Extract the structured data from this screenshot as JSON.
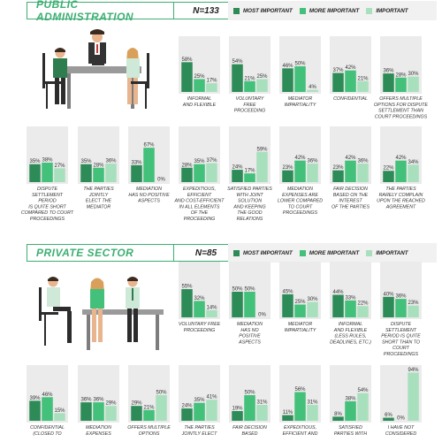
{
  "colors": {
    "most": "#2d8b57",
    "more": "#43c079",
    "important": "#a8e0bd",
    "panel": "#ebebeb",
    "accent": "#3daf73"
  },
  "legend": {
    "most": "MOST IMPORTANT",
    "more": "MORE IMPORTANT",
    "important": "IMPORTANT"
  },
  "sections": [
    {
      "title": "PUBLIC ADMINISTRATION",
      "n": "N=133"
    },
    {
      "title": "PRIVATE SECTOR",
      "n": "N=85"
    }
  ],
  "chart_data": [
    {
      "type": "bar",
      "title": "PUBLIC ADMINISTRATION",
      "series_names": [
        "MOST IMPORTANT",
        "MORE IMPORTANT",
        "IMPORTANT"
      ],
      "ylim": [
        0,
        100
      ],
      "groups": [
        {
          "label": [
            "INFORMAL",
            "AND FLEXIBLE"
          ],
          "values": [
            58,
            25,
            17
          ]
        },
        {
          "label": [
            "VOLUNTARY",
            "FREE",
            "PROCEEDING"
          ],
          "values": [
            54,
            21,
            25
          ]
        },
        {
          "label": [
            "MEDIATOR",
            "IMPARTIALITY"
          ],
          "values": [
            46,
            50,
            4
          ]
        },
        {
          "label": [
            "CONFIDENTIAL"
          ],
          "values": [
            37,
            42,
            21
          ]
        },
        {
          "label": [
            "OFFERS MULTIPLE",
            "OPTIONS FOR DISPUTE",
            "SETTLEMENT THAN",
            "COURT PROCEEDINGS"
          ],
          "values": [
            36,
            28,
            30
          ]
        },
        {
          "label": [
            "DISPUTE",
            "SETTLEMENT",
            "PERIOD",
            "IS QUITE SHORT",
            "COMPARED TO COURT",
            "PROCEEDINGS"
          ],
          "values": [
            35,
            38,
            27
          ]
        },
        {
          "label": [
            "THE PARTIES",
            "JOINTLY",
            "ELECT THE",
            "MEDIATOR"
          ],
          "values": [
            35,
            28,
            36
          ]
        },
        {
          "label": [
            "MEDIATION",
            "HAS NO POSITIVE",
            "ASPECTS"
          ],
          "values": [
            33,
            67,
            0
          ]
        },
        {
          "label": [
            "EXPEDITIOUS,",
            "EFFICIENT",
            "AND COST-EFFICIENT",
            "IN ALL ELEMENTS",
            "OF THE",
            "PROCEEDING"
          ],
          "values": [
            28,
            35,
            37
          ]
        },
        {
          "label": [
            "SATISFIED PARTIES",
            "WITH JOINT",
            "SOLUTION",
            "AND KEEPING",
            "THE GOOD",
            "RELATIONS"
          ],
          "values": [
            24,
            17,
            59
          ]
        },
        {
          "label": [
            "MEDIATION",
            "EXPENSES ARE",
            "LOWER COMPARED",
            "TO COURT",
            "PROCEEDINGS"
          ],
          "values": [
            23,
            42,
            36
          ]
        },
        {
          "label": [
            "FAIR DECISION",
            "BASED ON THE",
            "INTEREST",
            "OF THE PARTIES"
          ],
          "values": [
            23,
            42,
            36
          ]
        },
        {
          "label": [
            "THE PARTIES",
            "RARELY COMPLAIN",
            "UPON THE REACHED",
            "AGREEMENT"
          ],
          "values": [
            22,
            42,
            34
          ]
        }
      ]
    },
    {
      "type": "bar",
      "title": "PRIVATE SECTOR",
      "series_names": [
        "MOST IMPORTANT",
        "MORE IMPORTANT",
        "IMPORTANT"
      ],
      "ylim": [
        0,
        100
      ],
      "groups": [
        {
          "label": [
            "VOLUNTARY FREE",
            "PROCEEDING"
          ],
          "values": [
            55,
            32,
            14
          ]
        },
        {
          "label": [
            "MEDIATION",
            "HAS NO",
            "POSITIVE",
            "ASPECTS"
          ],
          "values": [
            50,
            50,
            0
          ]
        },
        {
          "label": [
            "MEDIATOR",
            "IMPARTIALITY"
          ],
          "values": [
            45,
            25,
            30
          ]
        },
        {
          "label": [
            "INFORMAL",
            "AND FLEXIBLE",
            "(LESS RULES,",
            "DEADLINES, ETC.)"
          ],
          "values": [
            44,
            33,
            22
          ]
        },
        {
          "label": [
            "DISPUTE",
            "SETTLEMENT",
            "PERIOD IS QUITE",
            "SHORT THAN TO",
            "COURT",
            "PROCEEDINGS"
          ],
          "values": [
            40,
            36,
            23
          ]
        },
        {
          "label": [
            "CONFIDENTIAL",
            "(CLOSED TO"
          ],
          "values": [
            39,
            46,
            15
          ]
        },
        {
          "label": [
            "MEDIATION",
            "EXPENSES"
          ],
          "values": [
            36,
            36,
            29
          ]
        },
        {
          "label": [
            "OFFERS MULTIPLE",
            "OPTIONS"
          ],
          "values": [
            29,
            21,
            50
          ]
        },
        {
          "label": [
            "THE PARTIES",
            "JOINTLY ELECT"
          ],
          "values": [
            24,
            35,
            41
          ]
        },
        {
          "label": [
            "FAIR DECISION",
            "BASED"
          ],
          "values": [
            19,
            50,
            31
          ]
        },
        {
          "label": [
            "EXPEDITIOUS,",
            "EFFICIENT AND"
          ],
          "values": [
            11,
            56,
            31
          ]
        },
        {
          "label": [
            "SATISFIED",
            "PARTIES WITH"
          ],
          "values": [
            8,
            38,
            54
          ]
        },
        {
          "label": [
            "I HAVE NOT",
            "CONSIDERED"
          ],
          "values": [
            6,
            0,
            94
          ]
        }
      ]
    }
  ]
}
